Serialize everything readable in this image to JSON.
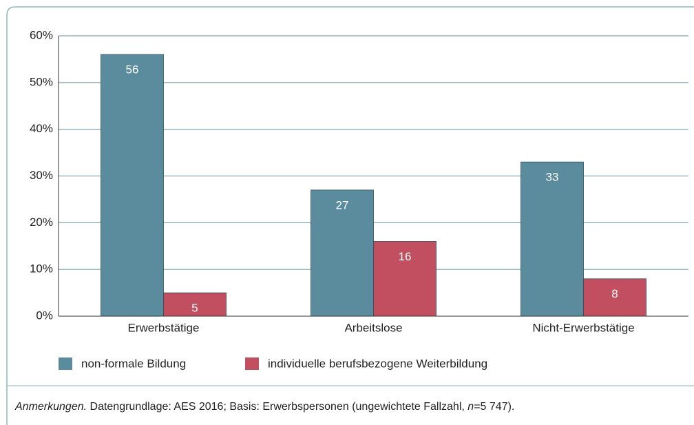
{
  "chart_data": {
    "type": "bar",
    "categories": [
      "Erwerbstätige",
      "Arbeitslose",
      "Nicht-Erwerbstätige"
    ],
    "series": [
      {
        "name": "non-formale Bildung",
        "color": "#5a8c9d",
        "values": [
          56,
          27,
          33
        ]
      },
      {
        "name": "individuelle berufsbezogene Weiterbildung",
        "color": "#c14f60",
        "values": [
          5,
          16,
          8
        ]
      }
    ],
    "ylim": [
      0,
      60
    ],
    "yticks": [
      {
        "value": 0,
        "label": "0%"
      },
      {
        "value": 10,
        "label": "10%"
      },
      {
        "value": 20,
        "label": "20%"
      },
      {
        "value": 30,
        "label": "30%"
      },
      {
        "value": 40,
        "label": "40%"
      },
      {
        "value": 50,
        "label": "50%"
      },
      {
        "value": 60,
        "label": "60%"
      }
    ],
    "grid": true,
    "note_label": "Anmerkungen.",
    "note_text": " Datengrundlage: AES 2016; Basis: Erwerbspersonen (ungewichtete Fallzahl, ",
    "note_var": "n",
    "note_rest": "=5 747)."
  }
}
